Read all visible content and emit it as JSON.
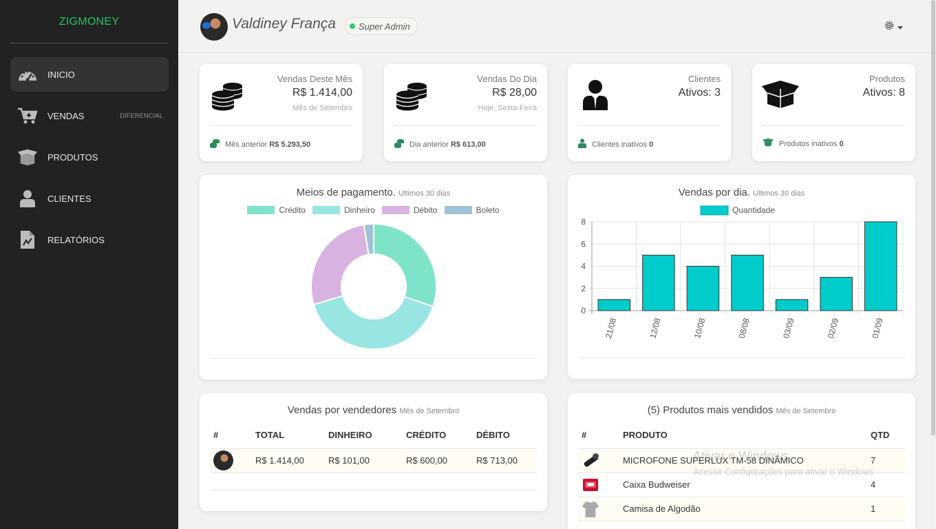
{
  "sidebar": {
    "brand": "ZIGMONEY",
    "items": [
      {
        "label": "INICIO",
        "badge": ""
      },
      {
        "label": "VENDAS",
        "badge": "DIFERENCIAL"
      },
      {
        "label": "PRODUTOS",
        "badge": ""
      },
      {
        "label": "CLIENTES",
        "badge": ""
      },
      {
        "label": "RELATÓRIOS",
        "badge": ""
      }
    ]
  },
  "header": {
    "user_name": "Valdiney França",
    "role": "Super Admin"
  },
  "stats": [
    {
      "title": "Vendas Deste Mês",
      "value": "R$ 1.414,00",
      "sub": "Mês de Setembro",
      "foot_label": "Mês anterior",
      "foot_value": "R$ 5.293,50",
      "icon": "coins-icon"
    },
    {
      "title": "Vendas Do Dia",
      "value": "R$ 28,00",
      "sub": "Hoje, Sexta-Feira",
      "foot_label": "Dia anterior",
      "foot_value": "R$ 613,00",
      "icon": "coins-icon"
    },
    {
      "title": "Clientes",
      "value": "Ativos: 3",
      "sub": "",
      "foot_label": "Clientes inativos",
      "foot_value": "0",
      "icon": "user-tie-icon"
    },
    {
      "title": "Produtos",
      "value": "Ativos: 8",
      "sub": "",
      "foot_label": "Produtos inativos",
      "foot_value": "0",
      "icon": "box-open-icon"
    }
  ],
  "payment_chart": {
    "title": "Meios de pagamento.",
    "subtitle": "Ultimos 30 dias"
  },
  "sales_chart": {
    "title": "Vendas por dia.",
    "subtitle": "Ultimos 30 dias"
  },
  "chart_data": [
    {
      "type": "pie",
      "title": "Meios de pagamento.",
      "subtitle": "Ultimos 30 dias",
      "labels": [
        "Crédito",
        "Dinheiro",
        "Débito",
        "Boleto"
      ],
      "values": [
        600,
        800,
        540,
        50
      ],
      "colors": [
        "#7fe3c9",
        "#99e5e2",
        "#d9b3df",
        "#9fc2d6"
      ],
      "donut": true,
      "legend": "top"
    },
    {
      "type": "bar",
      "title": "Vendas por dia.",
      "subtitle": "Ultimos 30 dias",
      "categories": [
        "21/08",
        "12/08",
        "10/08",
        "08/08",
        "03/09",
        "02/09",
        "01/09"
      ],
      "series": [
        {
          "name": "Quantidade",
          "values": [
            1,
            5,
            4,
            5,
            1,
            3,
            8
          ],
          "color": "#00cccc"
        }
      ],
      "ylim": [
        0,
        8
      ],
      "yticks": [
        0,
        2,
        4,
        6,
        8
      ],
      "grid": true,
      "legend": "top"
    }
  ],
  "vendors": {
    "title": "Vendas por vendedores",
    "subtitle": "Mês de Setembro",
    "headers": [
      "#",
      "TOTAL",
      "DINHEIRO",
      "CRÉDITO",
      "DÉBITO"
    ],
    "rows": [
      {
        "total": "R$ 1.414,00",
        "dinheiro": "R$ 101,00",
        "credito": "R$ 600,00",
        "debito": "R$ 713,00"
      }
    ]
  },
  "top_products": {
    "title": "(5) Produtos mais vendidos",
    "subtitle": "Mês de Setembro",
    "headers": [
      "#",
      "PRODUTO",
      "QTD"
    ],
    "rows": [
      {
        "name": "MICROFONE SUPERLUX TM-58 DINÂMICO",
        "qty": "7"
      },
      {
        "name": "Caixa Budweiser",
        "qty": "4"
      },
      {
        "name": "Camisa de Algodão",
        "qty": "1"
      }
    ]
  },
  "watermark": {
    "title": "Ativar o Windows",
    "subtitle": "Acesse Configurações para ativar o Windows."
  }
}
